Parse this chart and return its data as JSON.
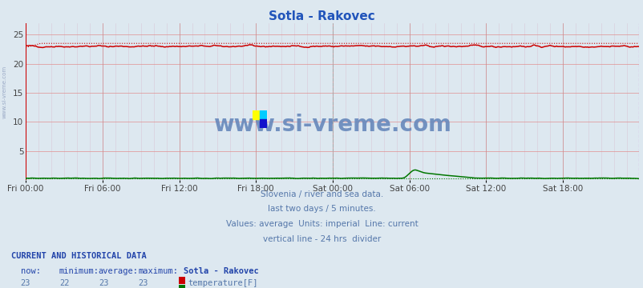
{
  "title": "Sotla - Rakovec",
  "title_color": "#2255bb",
  "bg_color": "#dde8f0",
  "plot_bg_color": "#dde8f0",
  "grid_h_color": "#e8a0a0",
  "grid_v_color": "#c8c8e0",
  "grid_major_color": "#c8a0a0",
  "xlim_max": 575,
  "ylim": [
    0,
    27
  ],
  "ytick_vals": [
    0,
    5,
    10,
    15,
    20,
    25
  ],
  "ytick_labels": [
    "",
    "5",
    "10",
    "15",
    "20",
    "25"
  ],
  "xtick_labels": [
    "Fri 00:00",
    "Fri 06:00",
    "Fri 12:00",
    "Fri 18:00",
    "Sat 00:00",
    "Sat 06:00",
    "Sat 12:00",
    "Sat 18:00"
  ],
  "xtick_positions": [
    0,
    72,
    144,
    216,
    288,
    360,
    432,
    504
  ],
  "temp_color": "#cc0000",
  "flow_color": "#007700",
  "divider_color": "#aaaaaa",
  "right_border_color": "#cc44cc",
  "left_line_color": "#cc0000",
  "watermark_color": "#6688bb",
  "footer_color": "#5577aa",
  "label_color": "#5577aa",
  "current_label_color": "#2244aa",
  "n_points": 576,
  "divider_x": 288,
  "temp_avg_level": 23.5,
  "temp_line_level": 23.0,
  "flow_avg_level": 0.5,
  "flow_line_level": 0.5
}
